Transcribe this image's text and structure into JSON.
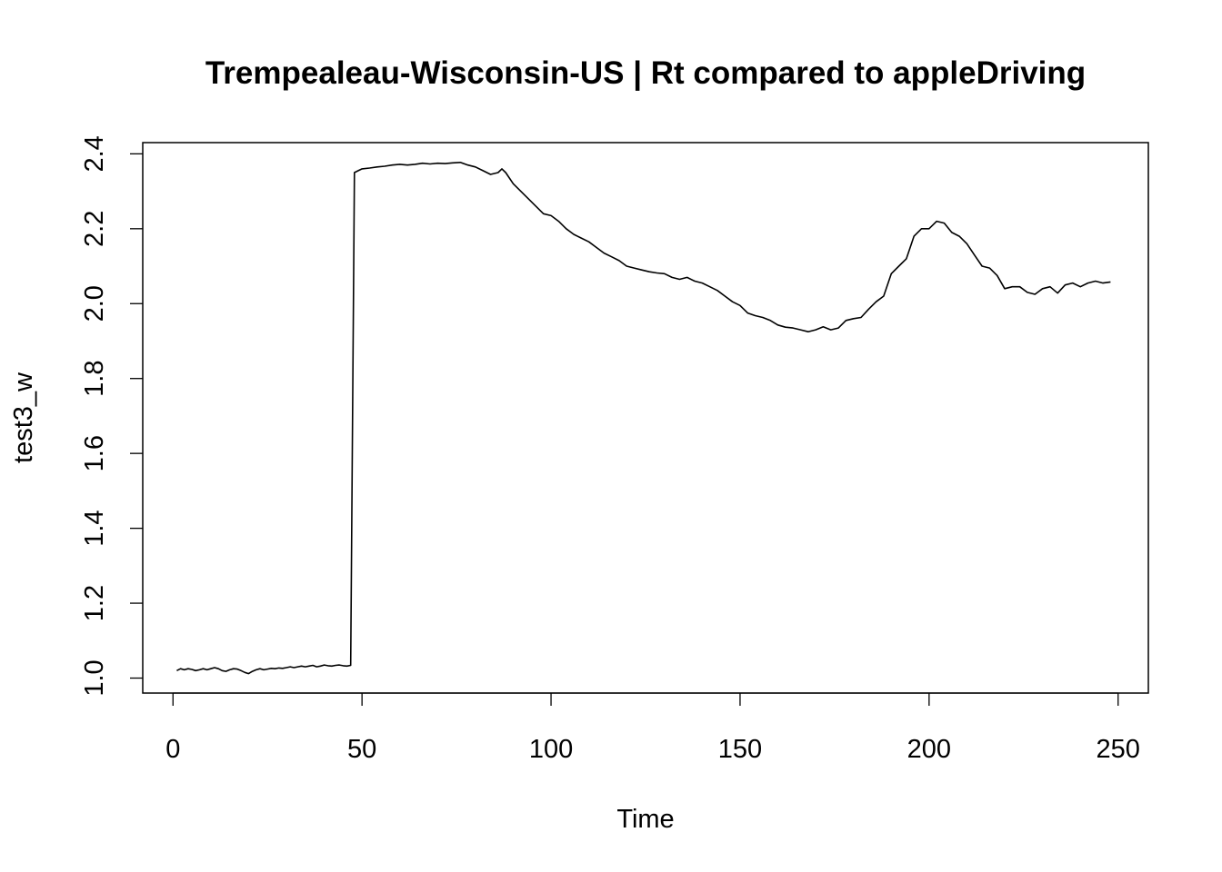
{
  "chart_data": {
    "type": "line",
    "title": "Trempealeau-Wisconsin-US | Rt compared to appleDriving",
    "xlabel": "Time",
    "ylabel": "test3_w",
    "xlim": [
      -8,
      258
    ],
    "ylim": [
      0.96,
      2.43
    ],
    "x_ticks": [
      0,
      50,
      100,
      150,
      200,
      250
    ],
    "y_ticks": [
      1.0,
      1.2,
      1.4,
      1.6,
      1.8,
      2.0,
      2.2,
      2.4
    ],
    "x_tick_labels": [
      "0",
      "50",
      "100",
      "150",
      "200",
      "250"
    ],
    "y_tick_labels": [
      "1.0",
      "1.2",
      "1.4",
      "1.6",
      "1.8",
      "2.0",
      "2.2",
      "2.4"
    ],
    "grid": false,
    "series": [
      {
        "x": [
          1,
          2,
          3,
          4,
          5,
          6,
          7,
          8,
          9,
          10,
          11,
          12,
          13,
          14,
          15,
          16,
          17,
          18,
          19,
          20,
          21,
          22,
          23,
          24,
          25,
          26,
          27,
          28,
          29,
          30,
          31,
          32,
          33,
          34,
          35,
          36,
          37,
          38,
          39,
          40,
          41,
          42,
          43,
          44,
          45,
          46,
          47,
          48,
          49,
          50,
          52,
          54,
          56,
          58,
          60,
          62,
          64,
          66,
          68,
          70,
          72,
          74,
          76,
          78,
          80,
          82,
          84,
          86,
          87,
          88,
          90,
          92,
          94,
          96,
          98,
          100,
          102,
          104,
          106,
          108,
          110,
          112,
          114,
          116,
          118,
          120,
          122,
          124,
          126,
          128,
          130,
          132,
          134,
          136,
          138,
          140,
          142,
          144,
          146,
          148,
          150,
          152,
          154,
          156,
          158,
          160,
          162,
          164,
          166,
          168,
          170,
          172,
          174,
          176,
          178,
          180,
          182,
          184,
          186,
          188,
          190,
          192,
          194,
          196,
          198,
          200,
          202,
          204,
          206,
          208,
          210,
          212,
          214,
          216,
          218,
          220,
          222,
          224,
          226,
          228,
          230,
          232,
          234,
          236,
          238,
          240,
          242,
          244,
          246,
          248
        ],
        "values": [
          1.02,
          1.025,
          1.022,
          1.025,
          1.023,
          1.02,
          1.022,
          1.025,
          1.022,
          1.025,
          1.028,
          1.025,
          1.02,
          1.018,
          1.022,
          1.025,
          1.024,
          1.02,
          1.015,
          1.012,
          1.018,
          1.022,
          1.025,
          1.022,
          1.024,
          1.026,
          1.025,
          1.027,
          1.026,
          1.028,
          1.03,
          1.028,
          1.03,
          1.032,
          1.03,
          1.032,
          1.034,
          1.03,
          1.032,
          1.035,
          1.033,
          1.032,
          1.034,
          1.035,
          1.033,
          1.032,
          1.034,
          2.35,
          2.355,
          2.36,
          2.362,
          2.365,
          2.367,
          2.37,
          2.372,
          2.37,
          2.372,
          2.375,
          2.373,
          2.375,
          2.374,
          2.376,
          2.377,
          2.37,
          2.365,
          2.355,
          2.345,
          2.35,
          2.36,
          2.35,
          2.32,
          2.3,
          2.28,
          2.26,
          2.24,
          2.235,
          2.22,
          2.2,
          2.185,
          2.175,
          2.165,
          2.15,
          2.135,
          2.125,
          2.115,
          2.1,
          2.095,
          2.09,
          2.085,
          2.082,
          2.08,
          2.07,
          2.065,
          2.07,
          2.06,
          2.055,
          2.045,
          2.035,
          2.02,
          2.005,
          1.995,
          1.975,
          1.968,
          1.963,
          1.955,
          1.943,
          1.937,
          1.935,
          1.93,
          1.925,
          1.93,
          1.938,
          1.93,
          1.935,
          1.955,
          1.96,
          1.963,
          1.985,
          2.005,
          2.02,
          2.08,
          2.1,
          2.12,
          2.18,
          2.2,
          2.2,
          2.22,
          2.215,
          2.19,
          2.18,
          2.16,
          2.13,
          2.1,
          2.095,
          2.075,
          2.04,
          2.045,
          2.045,
          2.03,
          2.025,
          2.04,
          2.045,
          2.028,
          2.05,
          2.055,
          2.045,
          2.055,
          2.06,
          2.055,
          2.058
        ]
      }
    ]
  }
}
